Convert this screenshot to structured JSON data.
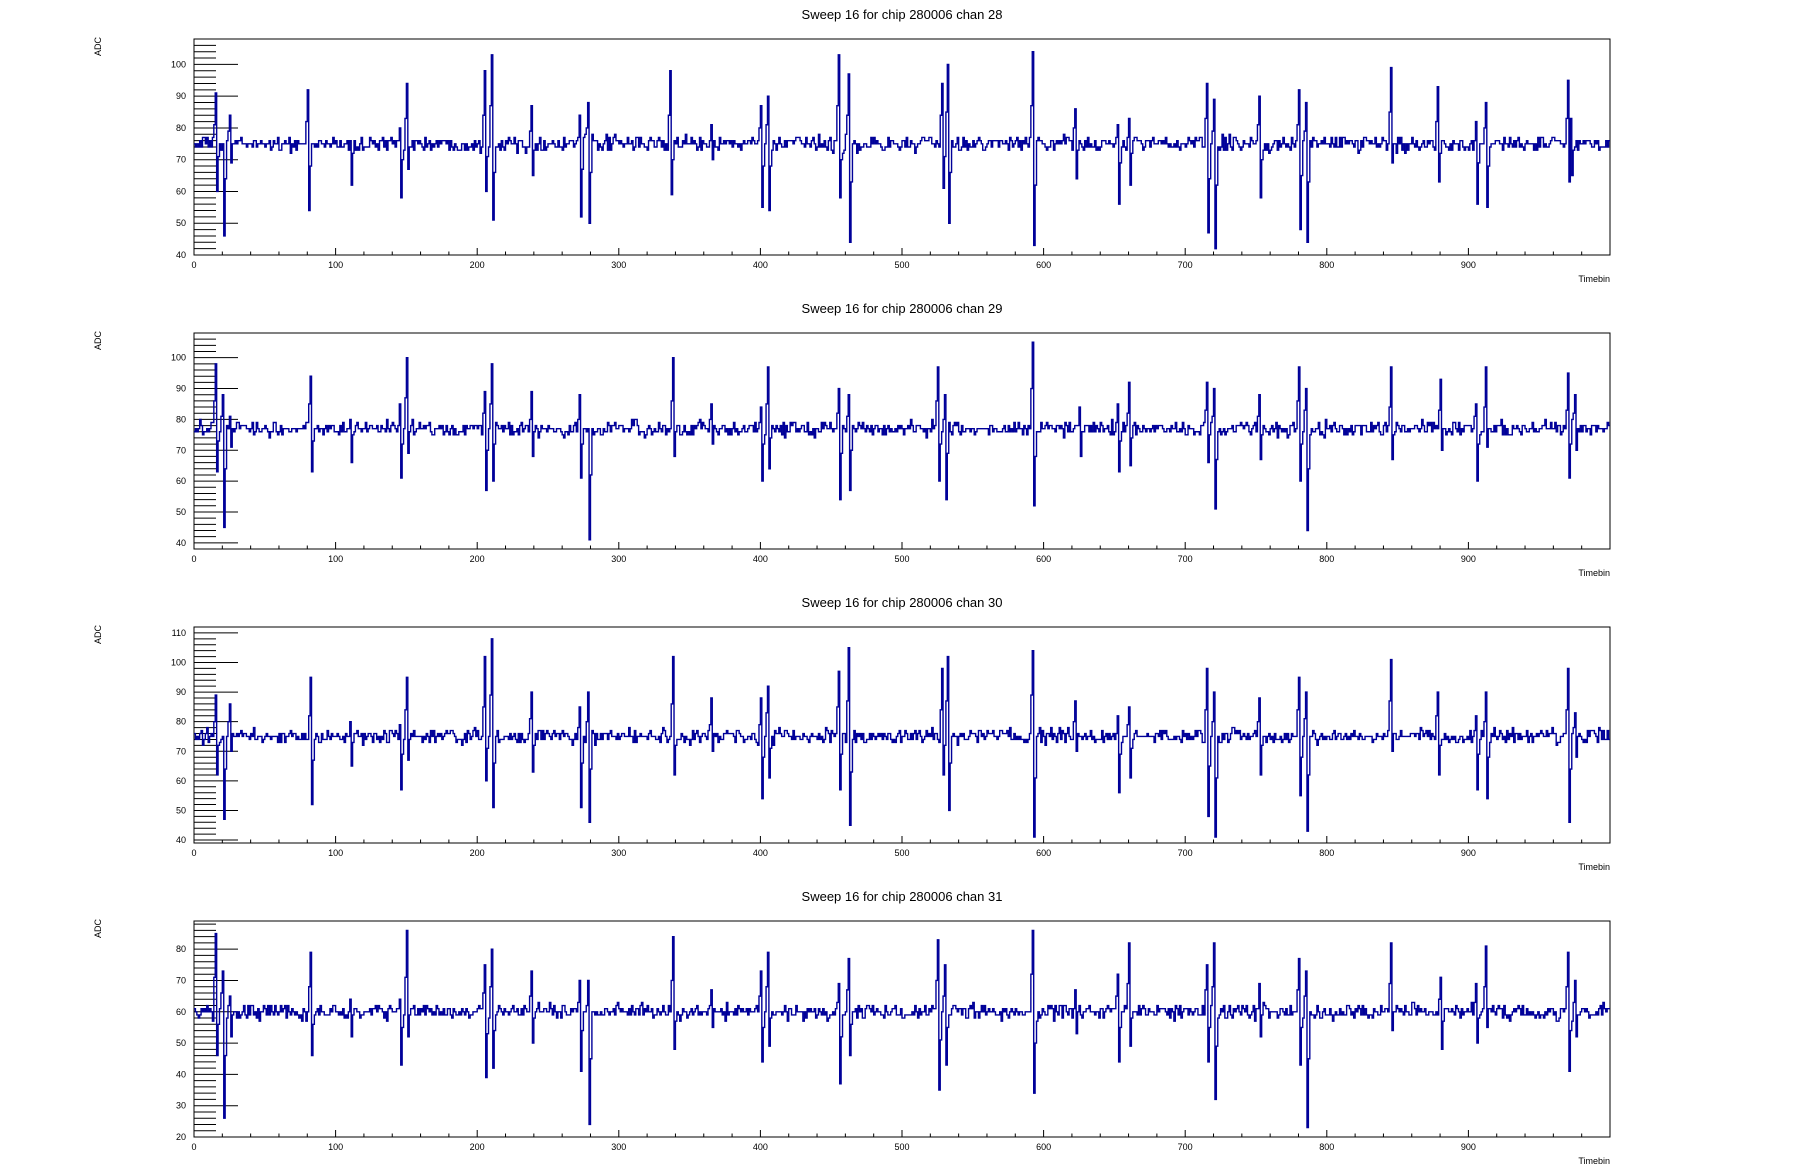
{
  "chart_data": [
    {
      "type": "line",
      "title": "Sweep 16 for chip 280006 chan 28",
      "xlabel": "Timebin",
      "ylabel": "ADC",
      "xlim": [
        0,
        1000
      ],
      "ylim": [
        40,
        108
      ],
      "xticks": [
        0,
        100,
        200,
        300,
        400,
        500,
        600,
        700,
        800,
        900
      ],
      "yticks": [
        40,
        50,
        60,
        70,
        80,
        90,
        100
      ],
      "baseline": 75,
      "noise": 1.2,
      "color": "#000099",
      "spikes": [
        [
          15,
          91,
          60
        ],
        [
          20,
          75,
          46
        ],
        [
          25,
          84,
          69
        ],
        [
          80,
          92,
          54
        ],
        [
          110,
          76,
          62
        ],
        [
          145,
          80,
          58
        ],
        [
          150,
          94,
          67
        ],
        [
          205,
          98,
          60
        ],
        [
          210,
          103,
          51
        ],
        [
          238,
          87,
          65
        ],
        [
          272,
          84,
          52
        ],
        [
          278,
          88,
          50
        ],
        [
          336,
          98,
          59
        ],
        [
          365,
          81,
          70
        ],
        [
          400,
          87,
          55
        ],
        [
          405,
          90,
          54
        ],
        [
          455,
          103,
          58
        ],
        [
          462,
          97,
          44
        ],
        [
          528,
          94,
          61
        ],
        [
          532,
          100,
          50
        ],
        [
          592,
          104,
          43
        ],
        [
          622,
          86,
          64
        ],
        [
          652,
          81,
          56
        ],
        [
          660,
          83,
          62
        ],
        [
          715,
          94,
          47
        ],
        [
          720,
          89,
          42
        ],
        [
          752,
          90,
          58
        ],
        [
          780,
          92,
          48
        ],
        [
          785,
          88,
          44
        ],
        [
          845,
          99,
          69
        ],
        [
          878,
          93,
          63
        ],
        [
          905,
          82,
          56
        ],
        [
          912,
          88,
          55
        ],
        [
          970,
          95,
          47
        ],
        [
          972,
          83,
          65
        ]
      ]
    },
    {
      "type": "line",
      "title": "Sweep 16 for chip 280006 chan 29",
      "xlabel": "Timebin",
      "ylabel": "ADC",
      "xlim": [
        0,
        1000
      ],
      "ylim": [
        38,
        108
      ],
      "xticks": [
        0,
        100,
        200,
        300,
        400,
        500,
        600,
        700,
        800,
        900
      ],
      "yticks": [
        40,
        50,
        60,
        70,
        80,
        90,
        100
      ],
      "baseline": 77,
      "noise": 1.2,
      "color": "#000099",
      "spikes": [
        [
          15,
          98,
          63
        ],
        [
          20,
          88,
          45
        ],
        [
          25,
          81,
          71
        ],
        [
          82,
          94,
          63
        ],
        [
          110,
          80,
          66
        ],
        [
          145,
          85,
          61
        ],
        [
          150,
          100,
          69
        ],
        [
          205,
          89,
          57
        ],
        [
          210,
          98,
          60
        ],
        [
          238,
          89,
          68
        ],
        [
          272,
          88,
          61
        ],
        [
          278,
          77,
          41
        ],
        [
          338,
          100,
          68
        ],
        [
          365,
          85,
          72
        ],
        [
          400,
          84,
          60
        ],
        [
          405,
          97,
          64
        ],
        [
          455,
          90,
          54
        ],
        [
          462,
          88,
          57
        ],
        [
          525,
          97,
          60
        ],
        [
          530,
          88,
          54
        ],
        [
          592,
          105,
          52
        ],
        [
          625,
          84,
          68
        ],
        [
          652,
          85,
          63
        ],
        [
          660,
          92,
          65
        ],
        [
          715,
          92,
          66
        ],
        [
          720,
          90,
          51
        ],
        [
          752,
          88,
          67
        ],
        [
          780,
          97,
          60
        ],
        [
          785,
          90,
          44
        ],
        [
          845,
          97,
          67
        ],
        [
          880,
          93,
          70
        ],
        [
          905,
          85,
          60
        ],
        [
          912,
          97,
          71
        ],
        [
          970,
          95,
          61
        ],
        [
          975,
          88,
          70
        ]
      ]
    },
    {
      "type": "line",
      "title": "Sweep 16 for chip 280006 chan 30",
      "xlabel": "Timebin",
      "ylabel": "ADC",
      "xlim": [
        0,
        1000
      ],
      "ylim": [
        39,
        112
      ],
      "xticks": [
        0,
        100,
        200,
        300,
        400,
        500,
        600,
        700,
        800,
        900
      ],
      "yticks": [
        40,
        50,
        60,
        70,
        80,
        90,
        100,
        110
      ],
      "baseline": 75,
      "noise": 1.2,
      "color": "#000099",
      "spikes": [
        [
          15,
          89,
          62
        ],
        [
          20,
          75,
          47
        ],
        [
          25,
          86,
          70
        ],
        [
          82,
          95,
          52
        ],
        [
          110,
          80,
          65
        ],
        [
          145,
          79,
          57
        ],
        [
          150,
          95,
          67
        ],
        [
          205,
          102,
          60
        ],
        [
          210,
          108,
          51
        ],
        [
          238,
          90,
          63
        ],
        [
          272,
          85,
          51
        ],
        [
          278,
          90,
          46
        ],
        [
          338,
          102,
          62
        ],
        [
          365,
          88,
          70
        ],
        [
          400,
          88,
          54
        ],
        [
          405,
          92,
          61
        ],
        [
          455,
          97,
          57
        ],
        [
          462,
          105,
          45
        ],
        [
          528,
          98,
          62
        ],
        [
          532,
          102,
          50
        ],
        [
          592,
          104,
          41
        ],
        [
          622,
          87,
          70
        ],
        [
          652,
          82,
          56
        ],
        [
          660,
          85,
          61
        ],
        [
          715,
          98,
          48
        ],
        [
          720,
          90,
          41
        ],
        [
          752,
          88,
          62
        ],
        [
          780,
          95,
          55
        ],
        [
          785,
          90,
          43
        ],
        [
          845,
          101,
          70
        ],
        [
          878,
          90,
          62
        ],
        [
          905,
          82,
          57
        ],
        [
          912,
          90,
          54
        ],
        [
          970,
          98,
          46
        ],
        [
          975,
          83,
          68
        ]
      ]
    },
    {
      "type": "line",
      "title": "Sweep 16 for chip 280006 chan 31",
      "xlabel": "Timebin",
      "ylabel": "ADC",
      "xlim": [
        0,
        1000
      ],
      "ylim": [
        20,
        89
      ],
      "xticks": [
        0,
        100,
        200,
        300,
        400,
        500,
        600,
        700,
        800,
        900
      ],
      "yticks": [
        20,
        30,
        40,
        50,
        60,
        70,
        80
      ],
      "baseline": 60,
      "noise": 1.2,
      "color": "#000099",
      "spikes": [
        [
          15,
          85,
          46
        ],
        [
          20,
          73,
          26
        ],
        [
          25,
          65,
          52
        ],
        [
          82,
          79,
          46
        ],
        [
          110,
          64,
          52
        ],
        [
          145,
          64,
          43
        ],
        [
          150,
          86,
          52
        ],
        [
          205,
          75,
          39
        ],
        [
          210,
          80,
          42
        ],
        [
          238,
          73,
          50
        ],
        [
          272,
          70,
          41
        ],
        [
          278,
          70,
          24
        ],
        [
          338,
          84,
          48
        ],
        [
          365,
          67,
          55
        ],
        [
          400,
          73,
          44
        ],
        [
          405,
          79,
          49
        ],
        [
          455,
          69,
          37
        ],
        [
          462,
          77,
          46
        ],
        [
          525,
          83,
          35
        ],
        [
          530,
          75,
          43
        ],
        [
          592,
          86,
          34
        ],
        [
          622,
          67,
          53
        ],
        [
          652,
          72,
          44
        ],
        [
          660,
          82,
          49
        ],
        [
          715,
          75,
          44
        ],
        [
          720,
          82,
          32
        ],
        [
          752,
          69,
          52
        ],
        [
          780,
          77,
          43
        ],
        [
          785,
          73,
          23
        ],
        [
          845,
          82,
          54
        ],
        [
          880,
          71,
          48
        ],
        [
          905,
          69,
          50
        ],
        [
          912,
          81,
          55
        ],
        [
          970,
          79,
          41
        ],
        [
          975,
          70,
          52
        ]
      ]
    }
  ]
}
